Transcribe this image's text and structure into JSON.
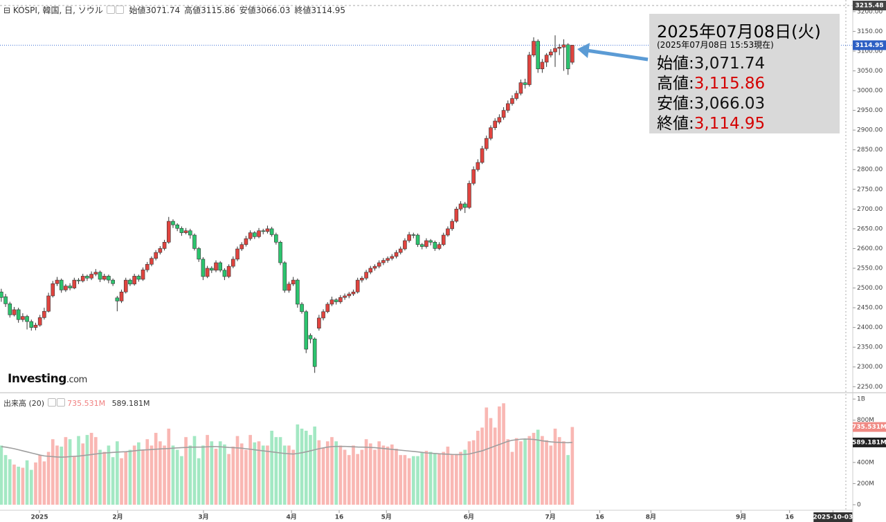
{
  "chart_data": {
    "type": "candlestick",
    "symbol": "KOSPI, 韓国, 日, ソウル",
    "legend": [
      {
        "label": "始値",
        "value": 3071.74
      },
      {
        "label": "高値",
        "value": 3115.86
      },
      {
        "label": "安値",
        "value": 3066.03
      },
      {
        "label": "終値",
        "value": 3114.95
      }
    ],
    "annotation": {
      "date": "2025年07月08日(火)",
      "note": "(2025年07月08日 15:53現在)",
      "rows": [
        {
          "label": "始値:",
          "value": 3071.74,
          "value_label": "3,071.74",
          "color": "#111111"
        },
        {
          "label": "高値:",
          "value": 3115.86,
          "value_label": "3,115.86",
          "color": "#d40000"
        },
        {
          "label": "安値:",
          "value": 3066.03,
          "value_label": "3,066.03",
          "color": "#111111"
        },
        {
          "label": "終値:",
          "value": 3114.95,
          "value_label": "3,114.95",
          "color": "#d40000"
        }
      ]
    },
    "logo": {
      "main": "Investing",
      "suffix": ".com"
    },
    "up_color": "#e0443f",
    "down_color": "#2cc46e",
    "xlim": [
      -0.3,
      198
    ],
    "xticks": [
      {
        "value": 8.9,
        "label": "2025"
      },
      {
        "value": 27.1,
        "label": "2月"
      },
      {
        "value": 47.1,
        "label": "3月"
      },
      {
        "value": 67.6,
        "label": "4月"
      },
      {
        "value": 78.7,
        "label": "16"
      },
      {
        "value": 89.7,
        "label": "5月"
      },
      {
        "value": 108.9,
        "label": "6月"
      },
      {
        "value": 127.9,
        "label": "7月"
      },
      {
        "value": 139.4,
        "label": "16"
      },
      {
        "value": 151.3,
        "label": "8月"
      },
      {
        "value": 172.3,
        "label": "9月"
      },
      {
        "value": 183.6,
        "label": "16"
      },
      {
        "value": 193.7,
        "label": "2025-10-03"
      }
    ],
    "ylim": [
      2240,
      3215.48
    ],
    "yticks": [
      {
        "value": 3200,
        "label": "3200.00"
      },
      {
        "value": 3150,
        "label": "3150.00"
      },
      {
        "value": 3100,
        "label": "3100.00"
      },
      {
        "value": 3050,
        "label": "3050.00"
      },
      {
        "value": 3000,
        "label": "3000.00"
      },
      {
        "value": 2950,
        "label": "2950.00"
      },
      {
        "value": 2900,
        "label": "2900.00"
      },
      {
        "value": 2850,
        "label": "2850.00"
      },
      {
        "value": 2800,
        "label": "2800.00"
      },
      {
        "value": 2750,
        "label": "2750.00"
      },
      {
        "value": 2700,
        "label": "2700.00"
      },
      {
        "value": 2650,
        "label": "2650.00"
      },
      {
        "value": 2600,
        "label": "2600.00"
      },
      {
        "value": 2550,
        "label": "2550.00"
      },
      {
        "value": 2500,
        "label": "2500.00"
      },
      {
        "value": 2450,
        "label": "2450.00"
      },
      {
        "value": 2400,
        "label": "2400.00"
      },
      {
        "value": 2350,
        "label": "2350.00"
      },
      {
        "value": 2300,
        "label": "2300.00"
      },
      {
        "value": 2250,
        "label": "2250.00"
      }
    ],
    "candles": [
      [
        2490,
        2498,
        2465,
        2476
      ],
      [
        2478,
        2485,
        2452,
        2460
      ],
      [
        2460,
        2465,
        2425,
        2432
      ],
      [
        2432,
        2452,
        2428,
        2445
      ],
      [
        2445,
        2450,
        2412,
        2420
      ],
      [
        2420,
        2436,
        2414,
        2428
      ],
      [
        2428,
        2432,
        2395,
        2415
      ],
      [
        2415,
        2420,
        2392,
        2400
      ],
      [
        2400,
        2412,
        2393,
        2406
      ],
      [
        2406,
        2432,
        2402,
        2425
      ],
      [
        2425,
        2450,
        2420,
        2441
      ],
      [
        2441,
        2488,
        2438,
        2480
      ],
      [
        2480,
        2518,
        2476,
        2511
      ],
      [
        2511,
        2528,
        2505,
        2520
      ],
      [
        2520,
        2524,
        2488,
        2495
      ],
      [
        2495,
        2510,
        2490,
        2505
      ],
      [
        2505,
        2512,
        2494,
        2500
      ],
      [
        2500,
        2526,
        2497,
        2520
      ],
      [
        2520,
        2525,
        2510,
        2518
      ],
      [
        2518,
        2536,
        2514,
        2530
      ],
      [
        2530,
        2534,
        2518,
        2525
      ],
      [
        2525,
        2542,
        2520,
        2535
      ],
      [
        2535,
        2548,
        2530,
        2540
      ],
      [
        2540,
        2544,
        2515,
        2522
      ],
      [
        2522,
        2536,
        2518,
        2530
      ],
      [
        2530,
        2534,
        2512,
        2520
      ],
      [
        2520,
        2524,
        2505,
        2511
      ],
      [
        2475,
        2480,
        2441,
        2467
      ],
      [
        2467,
        2496,
        2462,
        2490
      ],
      [
        2490,
        2526,
        2486,
        2520
      ],
      [
        2520,
        2524,
        2505,
        2510
      ],
      [
        2510,
        2536,
        2506,
        2530
      ],
      [
        2530,
        2534,
        2516,
        2522
      ],
      [
        2522,
        2552,
        2518,
        2546
      ],
      [
        2546,
        2566,
        2540,
        2560
      ],
      [
        2560,
        2580,
        2555,
        2575
      ],
      [
        2575,
        2596,
        2570,
        2590
      ],
      [
        2590,
        2606,
        2585,
        2600
      ],
      [
        2600,
        2622,
        2595,
        2616
      ],
      [
        2616,
        2680,
        2612,
        2669
      ],
      [
        2669,
        2674,
        2652,
        2660
      ],
      [
        2660,
        2664,
        2644,
        2651
      ],
      [
        2651,
        2656,
        2632,
        2640
      ],
      [
        2640,
        2652,
        2636,
        2645
      ],
      [
        2645,
        2650,
        2625,
        2634
      ],
      [
        2634,
        2638,
        2595,
        2600
      ],
      [
        2600,
        2604,
        2566,
        2573
      ],
      [
        2573,
        2578,
        2520,
        2529
      ],
      [
        2529,
        2556,
        2525,
        2550
      ],
      [
        2550,
        2555,
        2538,
        2545
      ],
      [
        2545,
        2570,
        2540,
        2564
      ],
      [
        2564,
        2568,
        2540,
        2545
      ],
      [
        2545,
        2550,
        2520,
        2529
      ],
      [
        2529,
        2560,
        2525,
        2555
      ],
      [
        2555,
        2580,
        2550,
        2573
      ],
      [
        2573,
        2605,
        2568,
        2599
      ],
      [
        2599,
        2616,
        2594,
        2610
      ],
      [
        2610,
        2632,
        2605,
        2625
      ],
      [
        2625,
        2646,
        2620,
        2640
      ],
      [
        2640,
        2644,
        2624,
        2630
      ],
      [
        2630,
        2652,
        2626,
        2645
      ],
      [
        2645,
        2650,
        2636,
        2643
      ],
      [
        2643,
        2658,
        2638,
        2650
      ],
      [
        2650,
        2655,
        2630,
        2635
      ],
      [
        2635,
        2640,
        2610,
        2616
      ],
      [
        2616,
        2620,
        2558,
        2564
      ],
      [
        2564,
        2568,
        2488,
        2494
      ],
      [
        2494,
        2516,
        2488,
        2510
      ],
      [
        2510,
        2528,
        2505,
        2520
      ],
      [
        2520,
        2524,
        2450,
        2459
      ],
      [
        2459,
        2464,
        2435,
        2440
      ],
      [
        2440,
        2444,
        2335,
        2345
      ],
      [
        2380,
        2385,
        2360,
        2371
      ],
      [
        2371,
        2375,
        2285,
        2301
      ],
      [
        2398,
        2432,
        2392,
        2424
      ],
      [
        2424,
        2446,
        2418,
        2440
      ],
      [
        2440,
        2464,
        2436,
        2459
      ],
      [
        2459,
        2478,
        2454,
        2470
      ],
      [
        2470,
        2474,
        2458,
        2465
      ],
      [
        2465,
        2482,
        2460,
        2476
      ],
      [
        2476,
        2486,
        2470,
        2480
      ],
      [
        2480,
        2490,
        2474,
        2485
      ],
      [
        2485,
        2496,
        2480,
        2490
      ],
      [
        2490,
        2526,
        2486,
        2520
      ],
      [
        2520,
        2530,
        2514,
        2525
      ],
      [
        2525,
        2546,
        2520,
        2540
      ],
      [
        2540,
        2556,
        2535,
        2550
      ],
      [
        2550,
        2560,
        2544,
        2555
      ],
      [
        2555,
        2570,
        2550,
        2564
      ],
      [
        2564,
        2576,
        2558,
        2570
      ],
      [
        2570,
        2580,
        2564,
        2575
      ],
      [
        2575,
        2586,
        2570,
        2580
      ],
      [
        2580,
        2596,
        2575,
        2590
      ],
      [
        2590,
        2605,
        2585,
        2599
      ],
      [
        2599,
        2626,
        2595,
        2620
      ],
      [
        2620,
        2642,
        2615,
        2635
      ],
      [
        2635,
        2640,
        2626,
        2634
      ],
      [
        2634,
        2638,
        2604,
        2610
      ],
      [
        2610,
        2614,
        2598,
        2605
      ],
      [
        2605,
        2626,
        2600,
        2620
      ],
      [
        2620,
        2624,
        2608,
        2616
      ],
      [
        2616,
        2620,
        2594,
        2600
      ],
      [
        2600,
        2616,
        2596,
        2610
      ],
      [
        2610,
        2640,
        2606,
        2634
      ],
      [
        2634,
        2656,
        2630,
        2650
      ],
      [
        2650,
        2675,
        2645,
        2669
      ],
      [
        2669,
        2706,
        2665,
        2700
      ],
      [
        2700,
        2720,
        2695,
        2713
      ],
      [
        2713,
        2718,
        2690,
        2704
      ],
      [
        2704,
        2772,
        2700,
        2765
      ],
      [
        2765,
        2808,
        2760,
        2800
      ],
      [
        2800,
        2826,
        2795,
        2818
      ],
      [
        2818,
        2860,
        2814,
        2853
      ],
      [
        2853,
        2886,
        2848,
        2879
      ],
      [
        2879,
        2912,
        2874,
        2906
      ],
      [
        2906,
        2930,
        2900,
        2923
      ],
      [
        2920,
        2940,
        2915,
        2932
      ],
      [
        2932,
        2958,
        2926,
        2950
      ],
      [
        2950,
        2975,
        2944,
        2967
      ],
      [
        2967,
        2988,
        2962,
        2980
      ],
      [
        2980,
        3000,
        2975,
        2993
      ],
      [
        2993,
        3028,
        2988,
        3020
      ],
      [
        3020,
        3030,
        3005,
        3015
      ],
      [
        3015,
        3098,
        3010,
        3090
      ],
      [
        3090,
        3135,
        3085,
        3125
      ],
      [
        3125,
        3130,
        3045,
        3055
      ],
      [
        3055,
        3080,
        3045,
        3072
      ],
      [
        3072,
        3095,
        3060,
        3090
      ],
      [
        3090,
        3105,
        3084,
        3098
      ],
      [
        3098,
        3140,
        3060,
        3107
      ],
      [
        3107,
        3118,
        3090,
        3110
      ],
      [
        3110,
        3130,
        3050,
        3116
      ],
      [
        3116,
        3120,
        3040,
        3055
      ],
      [
        3071.74,
        3115.86,
        3066.03,
        3114.95
      ]
    ],
    "volume": {
      "name": "出来高 (20)",
      "up_color": "#f9b7b3",
      "down_color": "#a3e8c3",
      "ylim": [
        0,
        1060
      ],
      "yticks": [
        {
          "value": 0,
          "label": "0"
        },
        {
          "value": 200,
          "label": "200M"
        },
        {
          "value": 400,
          "label": "400M"
        },
        {
          "value": 800,
          "label": "800M"
        },
        {
          "value": 1000,
          "label": "1B"
        }
      ],
      "values": [
        560,
        470,
        430,
        380,
        360,
        350,
        420,
        330,
        400,
        470,
        410,
        500,
        620,
        560,
        550,
        640,
        620,
        460,
        650,
        580,
        660,
        680,
        640,
        520,
        500,
        560,
        450,
        600,
        440,
        500,
        520,
        560,
        590,
        520,
        620,
        560,
        680,
        600,
        560,
        720,
        560,
        520,
        460,
        640,
        560,
        650,
        440,
        560,
        660,
        600,
        530,
        600,
        570,
        480,
        550,
        650,
        580,
        520,
        660,
        590,
        600,
        560,
        560,
        700,
        640,
        640,
        560,
        560,
        520,
        760,
        720,
        700,
        660,
        740,
        610,
        540,
        600,
        640,
        600,
        560,
        520,
        470,
        560,
        480,
        520,
        620,
        580,
        520,
        600,
        560,
        550,
        570,
        530,
        470,
        470,
        440,
        460,
        460,
        500,
        510,
        500,
        490,
        480,
        500,
        550,
        480,
        480,
        500,
        520,
        600,
        610,
        700,
        730,
        920,
        820,
        730,
        930,
        960,
        620,
        500,
        630,
        600,
        620,
        650,
        680,
        710,
        650,
        610,
        560,
        720,
        640,
        600,
        470,
        735.531
      ],
      "value_labels": {
        "133": "735.531M"
      },
      "ma": {
        "color": "#9e9e9e",
        "values": [
          550,
          545,
          538,
          530,
          520,
          510,
          500,
          490,
          480,
          470,
          462,
          458,
          455,
          452,
          450,
          452,
          455,
          458,
          460,
          465,
          470,
          475,
          480,
          485,
          490,
          492,
          495,
          498,
          500,
          502,
          505,
          510,
          515,
          518,
          520,
          522,
          525,
          528,
          530,
          532,
          535,
          538,
          540,
          542,
          545,
          545,
          545,
          546,
          548,
          550,
          550,
          548,
          545,
          542,
          540,
          538,
          535,
          530,
          525,
          520,
          515,
          510,
          505,
          500,
          495,
          490,
          485,
          482,
          480,
          485,
          492,
          500,
          510,
          520,
          530,
          538,
          545,
          550,
          552,
          552,
          552,
          550,
          548,
          546,
          545,
          544,
          542,
          540,
          536,
          532,
          528,
          524,
          520,
          516,
          512,
          508,
          504,
          500,
          495,
          490,
          488,
          485,
          482,
          480,
          478,
          476,
          475,
          475,
          476,
          480,
          490,
          500,
          510,
          525,
          540,
          555,
          570,
          585,
          600,
          610,
          615,
          620,
          622,
          620,
          618,
          612,
          605,
          600,
          595,
          592,
          590,
          588,
          587,
          589.181
        ],
        "value_labels": {
          "133": "589.181M"
        }
      }
    }
  }
}
